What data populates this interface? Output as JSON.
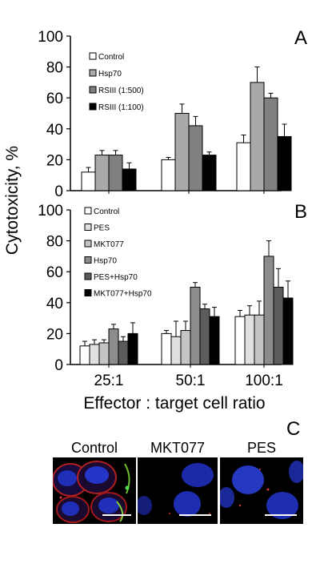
{
  "shared": {
    "y_axis_label": "Cytotoxicity, %",
    "x_axis_label": "Effector : target cell ratio"
  },
  "chart_data": [
    {
      "type": "bar",
      "panel": "A",
      "categories": [
        "25:1",
        "50:1",
        "100:1"
      ],
      "show_category_labels": false,
      "ylim": [
        0,
        100
      ],
      "yticks": [
        "0",
        "20",
        "40",
        "60",
        "80",
        "100"
      ],
      "legend_placement": "top-left",
      "series": [
        {
          "name": "Control",
          "values": [
            12,
            20,
            31
          ],
          "errors": [
            3,
            1.5,
            5
          ],
          "color": "#ffffff"
        },
        {
          "name": "Hsp70",
          "values": [
            23,
            50,
            70
          ],
          "errors": [
            3,
            6,
            10
          ],
          "color": "#a9a9a9"
        },
        {
          "name": "RSIII (1:500)",
          "values": [
            23,
            42,
            60
          ],
          "errors": [
            3,
            6,
            3
          ],
          "color": "#808080"
        },
        {
          "name": "RSIII (1:100)",
          "values": [
            14,
            23,
            35
          ],
          "errors": [
            4,
            2,
            8
          ],
          "color": "#000000"
        }
      ]
    },
    {
      "type": "bar",
      "panel": "B",
      "categories": [
        "25:1",
        "50:1",
        "100:1"
      ],
      "show_category_labels": true,
      "ylim": [
        0,
        100
      ],
      "yticks": [
        "0",
        "20",
        "40",
        "60",
        "80",
        "100"
      ],
      "legend_placement": "top-left",
      "series": [
        {
          "name": "Control",
          "values": [
            12,
            20,
            31
          ],
          "errors": [
            3,
            2,
            4
          ],
          "color": "#ffffff"
        },
        {
          "name": "PES",
          "values": [
            13,
            18,
            32
          ],
          "errors": [
            3,
            10,
            6
          ],
          "color": "#e0e0e0"
        },
        {
          "name": "MKT077",
          "values": [
            14,
            22,
            32
          ],
          "errors": [
            2,
            6,
            9
          ],
          "color": "#c4c4c4"
        },
        {
          "name": "Hsp70",
          "values": [
            23,
            50,
            70
          ],
          "errors": [
            3,
            3,
            10
          ],
          "color": "#8c8c8c"
        },
        {
          "name": "PES+Hsp70",
          "values": [
            15,
            36,
            50
          ],
          "errors": [
            3,
            3,
            12
          ],
          "color": "#5c5c5c"
        },
        {
          "name": "MKT077+Hsp70",
          "values": [
            20,
            31,
            43
          ],
          "errors": [
            7,
            6,
            11
          ],
          "color": "#000000"
        }
      ]
    }
  ],
  "panel_c": {
    "label": "C",
    "images": [
      {
        "title": "Control",
        "description_icon": "cell-image-icon"
      },
      {
        "title": "MKT077",
        "description_icon": "cell-image-icon"
      },
      {
        "title": "PES",
        "description_icon": "cell-image-icon"
      }
    ]
  }
}
